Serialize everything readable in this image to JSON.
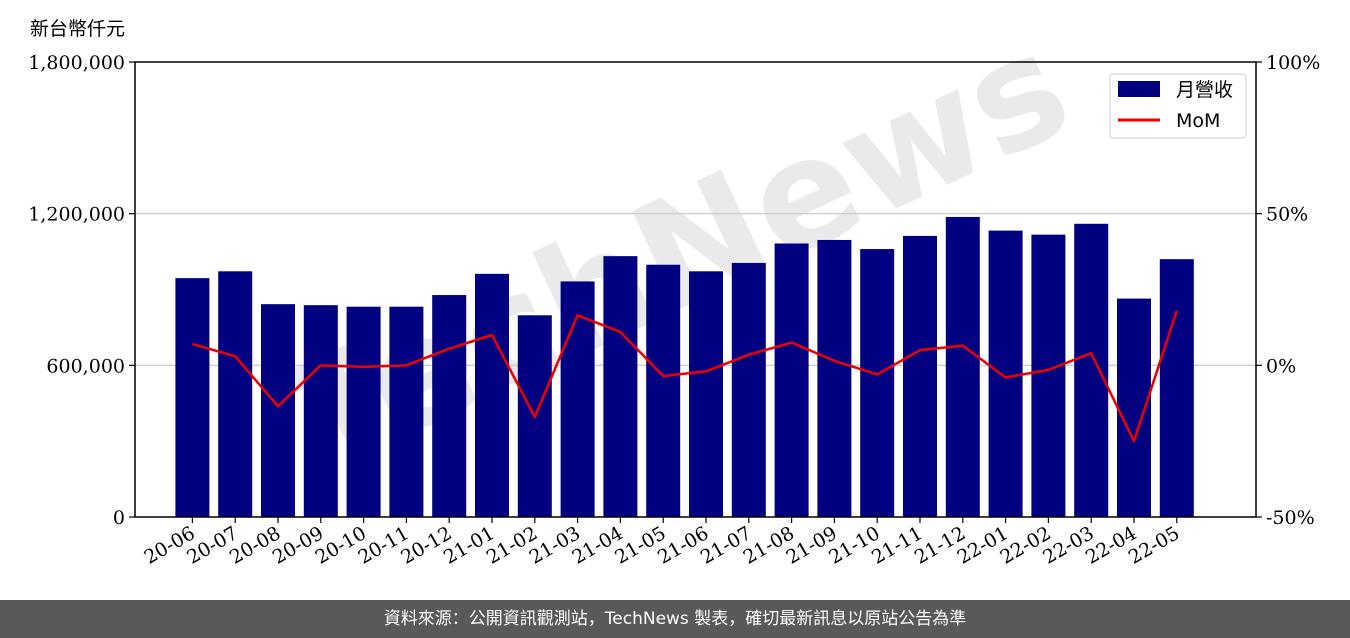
{
  "unit_label": "新台幣仟元",
  "footer_text": "資料來源：公開資訊觀測站，TechNews 製表，確切最新訊息以原站公告為準",
  "watermark": "TechNews",
  "colors": {
    "bar": "#000080",
    "line": "#ee0000",
    "grid": "#d0d0d0",
    "footer_bg": "#595959"
  },
  "chart_data": {
    "type": "bar",
    "categories": [
      "20-06",
      "20-07",
      "20-08",
      "20-09",
      "20-10",
      "20-11",
      "20-12",
      "21-01",
      "21-02",
      "21-03",
      "21-04",
      "21-05",
      "21-06",
      "21-07",
      "21-08",
      "21-09",
      "21-10",
      "21-11",
      "21-12",
      "22-01",
      "22-02",
      "22-03",
      "22-04",
      "22-05"
    ],
    "series": [
      {
        "name": "月營收",
        "axis": "left",
        "kind": "bar",
        "values": [
          945000,
          972000,
          842000,
          838000,
          832000,
          832000,
          878000,
          962000,
          798000,
          932000,
          1032000,
          998000,
          972000,
          1005000,
          1082000,
          1096000,
          1060000,
          1112000,
          1187000,
          1133000,
          1117000,
          1160000,
          864000,
          1020000
        ]
      },
      {
        "name": "MoM",
        "axis": "right",
        "kind": "line",
        "values": [
          7.0,
          3.0,
          -13.5,
          0.0,
          -0.5,
          0.0,
          5.5,
          10.0,
          -17.0,
          16.5,
          11.0,
          -3.5,
          -2.0,
          3.5,
          7.5,
          1.5,
          -3.0,
          5.0,
          6.5,
          -4.0,
          -1.5,
          4.0,
          -25.0,
          18.0
        ]
      }
    ],
    "yleft": {
      "lim": [
        0,
        1800000
      ],
      "ticks": [
        0,
        600000,
        1200000,
        1800000
      ],
      "tick_labels": [
        "0",
        "600,000",
        "1,200,000",
        "1,800,000"
      ]
    },
    "yright": {
      "lim": [
        -50,
        100
      ],
      "ticks": [
        -50,
        0,
        50,
        100
      ],
      "tick_labels": [
        "-50%",
        "0%",
        "50%",
        "100%"
      ]
    },
    "grid": "horizontal",
    "legend_position": "top-right"
  }
}
